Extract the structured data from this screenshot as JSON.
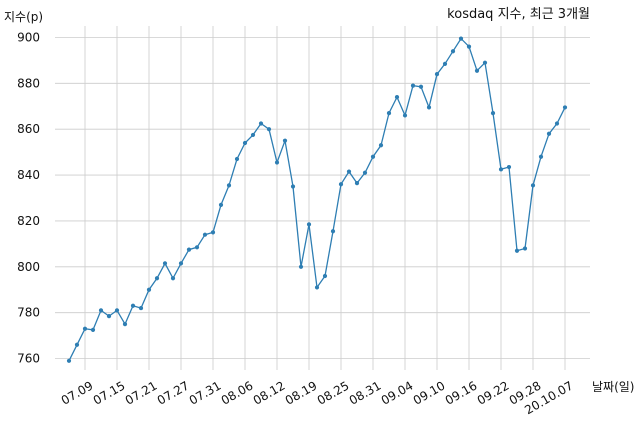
{
  "chart_data": {
    "type": "line",
    "title": "kosdaq 지수, 최근 3개월",
    "xlabel": "날짜(일)",
    "ylabel": "지수(p)",
    "ylim": [
      755,
      905
    ],
    "yticks": [
      760,
      780,
      800,
      820,
      840,
      860,
      880,
      900
    ],
    "grid": true,
    "line_color": "#2e7eb3",
    "xtick_labels": [
      {
        "index": 2,
        "label": "07.09"
      },
      {
        "index": 6,
        "label": "07.15"
      },
      {
        "index": 10,
        "label": "07.21"
      },
      {
        "index": 14,
        "label": "07.27"
      },
      {
        "index": 18,
        "label": "07.31"
      },
      {
        "index": 22,
        "label": "08.06"
      },
      {
        "index": 26,
        "label": "08.12"
      },
      {
        "index": 30,
        "label": "08.19"
      },
      {
        "index": 34,
        "label": "08.25"
      },
      {
        "index": 38,
        "label": "08.31"
      },
      {
        "index": 42,
        "label": "09.04"
      },
      {
        "index": 46,
        "label": "09.10"
      },
      {
        "index": 50,
        "label": "09.16"
      },
      {
        "index": 54,
        "label": "09.22"
      },
      {
        "index": 58,
        "label": "09.28"
      },
      {
        "index": 62,
        "label": "20.10.07"
      }
    ],
    "series": [
      {
        "values": [
          759,
          766,
          773,
          772.5,
          781,
          778.5,
          781,
          775,
          783,
          782,
          790,
          795,
          801.5,
          795,
          801.5,
          807.5,
          808.5,
          814,
          815,
          827,
          835.5,
          847,
          854,
          857.5,
          862.5,
          860,
          845.5,
          855,
          835,
          800,
          818.5,
          791,
          796,
          815.5,
          836,
          841.5,
          836.5,
          841,
          848,
          853,
          867,
          874,
          866,
          879,
          878.5,
          869.5,
          884,
          888.5,
          894,
          899.5,
          896,
          885.5,
          889,
          867,
          842.5,
          843.5,
          807,
          808,
          835.5,
          848,
          858,
          862.5,
          869.5
        ]
      }
    ]
  }
}
